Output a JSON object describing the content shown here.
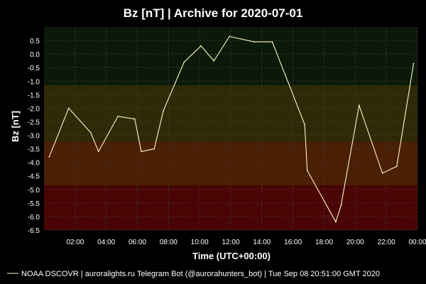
{
  "chart_data": {
    "type": "line",
    "title": "Bz [nT] | Archive for 2020-07-01",
    "xlabel": "Time (UTC+00:00)",
    "ylabel": "Bz [nT]",
    "ylim": [
      -6.5,
      1.0
    ],
    "y_ticks": [
      "0.5",
      "0.0",
      "-0.5",
      "-1.0",
      "-1.5",
      "-2.0",
      "-2.5",
      "-3.0",
      "-3.5",
      "-4.0",
      "-4.5",
      "-5.0",
      "-5.5",
      "-6.0",
      "-6.5"
    ],
    "xlim": [
      "00:00",
      "24:00"
    ],
    "x_ticks": [
      "02:00",
      "04:00",
      "06:00",
      "08:00",
      "10:00",
      "12:00",
      "14:00",
      "16:00",
      "18:00",
      "20:00",
      "22:00",
      "00:00"
    ],
    "grid": true,
    "legend_position": "bottom-left",
    "zones": [
      {
        "from": -1.15,
        "to": 1.0,
        "color": "#0b1a08"
      },
      {
        "from": -3.25,
        "to": -1.15,
        "color": "#2f2a06"
      },
      {
        "from": -4.85,
        "to": -3.25,
        "color": "#4a1f04"
      },
      {
        "from": -6.5,
        "to": -4.85,
        "color": "#4a0404"
      }
    ],
    "series": [
      {
        "name": "NOAA DSCOVR",
        "color": "#fff5c0",
        "x": [
          "00:20",
          "01:35",
          "03:00",
          "03:30",
          "04:45",
          "05:50",
          "06:15",
          "07:05",
          "07:40",
          "09:00",
          "10:05",
          "10:55",
          "11:55",
          "13:30",
          "14:40",
          "16:45",
          "16:55",
          "18:45",
          "19:05",
          "20:15",
          "21:45",
          "22:40",
          "23:45"
        ],
        "y": [
          -3.8,
          -2.0,
          -2.9,
          -3.6,
          -2.3,
          -2.4,
          -3.6,
          -3.5,
          -2.1,
          -0.3,
          0.3,
          -0.25,
          0.65,
          0.45,
          0.45,
          -2.6,
          -4.3,
          -6.2,
          -5.6,
          -1.9,
          -4.4,
          -4.15,
          -0.35
        ]
      }
    ]
  },
  "footer": {
    "legend_label": "NOAA DSCOVR | auroralights.ru Telegram Bot (@aurorahunters_bot) | Tue Sep 08 20:51:00 GMT 2020"
  }
}
